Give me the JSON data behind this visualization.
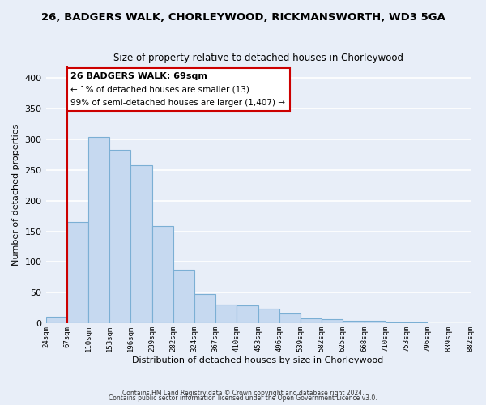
{
  "title1": "26, BADGERS WALK, CHORLEYWOOD, RICKMANSWORTH, WD3 5GA",
  "title2": "Size of property relative to detached houses in Chorleywood",
  "xlabel": "Distribution of detached houses by size in Chorleywood",
  "ylabel": "Number of detached properties",
  "bin_labels": [
    "24sqm",
    "67sqm",
    "110sqm",
    "153sqm",
    "196sqm",
    "239sqm",
    "282sqm",
    "324sqm",
    "367sqm",
    "410sqm",
    "453sqm",
    "496sqm",
    "539sqm",
    "582sqm",
    "625sqm",
    "668sqm",
    "710sqm",
    "753sqm",
    "796sqm",
    "839sqm",
    "882sqm"
  ],
  "bar_heights": [
    11,
    165,
    303,
    282,
    258,
    159,
    88,
    48,
    31,
    29,
    24,
    17,
    8,
    7,
    5,
    5,
    2,
    2,
    1,
    1
  ],
  "bar_color": "#c6d9f0",
  "bar_edge_color": "#7bafd4",
  "ylim": [
    0,
    420
  ],
  "yticks": [
    0,
    50,
    100,
    150,
    200,
    250,
    300,
    350,
    400
  ],
  "annotation_title": "26 BADGERS WALK: 69sqm",
  "annotation_line1": "← 1% of detached houses are smaller (13)",
  "annotation_line2": "99% of semi-detached houses are larger (1,407) →",
  "footer1": "Contains HM Land Registry data © Crown copyright and database right 2024.",
  "footer2": "Contains public sector information licensed under the Open Government Licence v3.0.",
  "bg_color": "#e8eef8",
  "grid_color": "#ffffff",
  "red_line_color": "#cc0000",
  "annotation_box_color": "#ffffff",
  "annotation_box_edge": "#cc0000",
  "red_line_index": 1
}
